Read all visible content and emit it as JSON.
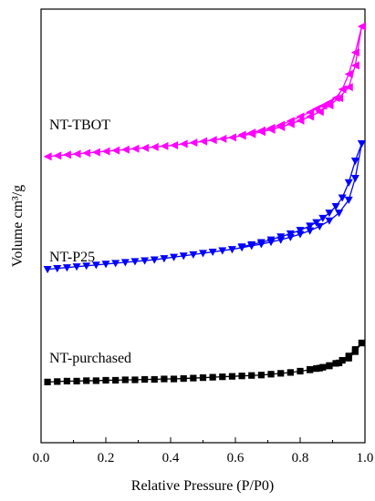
{
  "chart_data": {
    "type": "scatter",
    "xlabel": "Relative Pressure (P/P0)",
    "ylabel": "Volume cm³/g",
    "xlim": [
      0.0,
      1.0
    ],
    "x_ticks": [
      "0.0",
      "0.2",
      "0.4",
      "0.6",
      "0.8",
      "1.0"
    ],
    "y_ticks_visible": false,
    "series": [
      {
        "name": "NT-TBOT",
        "color": "#ff00ff",
        "marker": "triangle-left",
        "adsorption": [
          [
            0.02,
            0.66
          ],
          [
            0.05,
            0.662
          ],
          [
            0.08,
            0.664
          ],
          [
            0.11,
            0.666
          ],
          [
            0.14,
            0.668
          ],
          [
            0.17,
            0.67
          ],
          [
            0.2,
            0.672
          ],
          [
            0.23,
            0.674
          ],
          [
            0.26,
            0.676
          ],
          [
            0.29,
            0.678
          ],
          [
            0.32,
            0.68
          ],
          [
            0.35,
            0.682
          ],
          [
            0.38,
            0.684
          ],
          [
            0.41,
            0.686
          ],
          [
            0.44,
            0.689
          ],
          [
            0.47,
            0.692
          ],
          [
            0.5,
            0.695
          ],
          [
            0.53,
            0.698
          ],
          [
            0.56,
            0.701
          ],
          [
            0.59,
            0.704
          ],
          [
            0.62,
            0.708
          ],
          [
            0.65,
            0.712
          ],
          [
            0.68,
            0.717
          ],
          [
            0.71,
            0.722
          ],
          [
            0.74,
            0.728
          ],
          [
            0.77,
            0.735
          ],
          [
            0.8,
            0.743
          ],
          [
            0.83,
            0.752
          ],
          [
            0.86,
            0.763
          ],
          [
            0.89,
            0.778
          ],
          [
            0.92,
            0.795
          ],
          [
            0.95,
            0.82
          ],
          [
            0.97,
            0.87
          ],
          [
            0.99,
            0.96
          ]
        ],
        "desorption": [
          [
            0.99,
            0.96
          ],
          [
            0.97,
            0.9
          ],
          [
            0.95,
            0.85
          ],
          [
            0.93,
            0.815
          ],
          [
            0.91,
            0.795
          ],
          [
            0.89,
            0.785
          ],
          [
            0.87,
            0.777
          ],
          [
            0.85,
            0.77
          ],
          [
            0.83,
            0.762
          ],
          [
            0.8,
            0.752
          ],
          [
            0.77,
            0.742
          ],
          [
            0.74,
            0.733
          ],
          [
            0.71,
            0.726
          ],
          [
            0.68,
            0.72
          ],
          [
            0.65,
            0.715
          ],
          [
            0.62,
            0.71
          ]
        ]
      },
      {
        "name": "NT-P25",
        "color": "#0000ff",
        "marker": "triangle-down",
        "adsorption": [
          [
            0.02,
            0.4
          ],
          [
            0.05,
            0.402
          ],
          [
            0.08,
            0.404
          ],
          [
            0.11,
            0.406
          ],
          [
            0.14,
            0.408
          ],
          [
            0.17,
            0.41
          ],
          [
            0.2,
            0.412
          ],
          [
            0.23,
            0.414
          ],
          [
            0.26,
            0.416
          ],
          [
            0.29,
            0.418
          ],
          [
            0.32,
            0.42
          ],
          [
            0.35,
            0.422
          ],
          [
            0.38,
            0.425
          ],
          [
            0.41,
            0.428
          ],
          [
            0.44,
            0.431
          ],
          [
            0.47,
            0.434
          ],
          [
            0.5,
            0.437
          ],
          [
            0.53,
            0.44
          ],
          [
            0.56,
            0.443
          ],
          [
            0.59,
            0.446
          ],
          [
            0.62,
            0.45
          ],
          [
            0.65,
            0.454
          ],
          [
            0.68,
            0.458
          ],
          [
            0.71,
            0.463
          ],
          [
            0.74,
            0.468
          ],
          [
            0.77,
            0.474
          ],
          [
            0.8,
            0.481
          ],
          [
            0.83,
            0.489
          ],
          [
            0.86,
            0.499
          ],
          [
            0.89,
            0.512
          ],
          [
            0.92,
            0.53
          ],
          [
            0.95,
            0.56
          ],
          [
            0.97,
            0.61
          ],
          [
            0.99,
            0.69
          ]
        ],
        "desorption": [
          [
            0.99,
            0.69
          ],
          [
            0.97,
            0.65
          ],
          [
            0.95,
            0.6
          ],
          [
            0.93,
            0.565
          ],
          [
            0.91,
            0.545
          ],
          [
            0.89,
            0.53
          ],
          [
            0.87,
            0.518
          ],
          [
            0.85,
            0.508
          ],
          [
            0.83,
            0.5
          ],
          [
            0.8,
            0.49
          ],
          [
            0.77,
            0.482
          ],
          [
            0.74,
            0.475
          ],
          [
            0.71,
            0.468
          ],
          [
            0.68,
            0.462
          ],
          [
            0.65,
            0.457
          ],
          [
            0.62,
            0.452
          ]
        ]
      },
      {
        "name": "NT-purchased",
        "color": "#000000",
        "marker": "square",
        "adsorption": [
          [
            0.02,
            0.14
          ],
          [
            0.05,
            0.141
          ],
          [
            0.08,
            0.142
          ],
          [
            0.11,
            0.142
          ],
          [
            0.14,
            0.143
          ],
          [
            0.17,
            0.143
          ],
          [
            0.2,
            0.144
          ],
          [
            0.23,
            0.144
          ],
          [
            0.26,
            0.145
          ],
          [
            0.29,
            0.145
          ],
          [
            0.32,
            0.146
          ],
          [
            0.35,
            0.146
          ],
          [
            0.38,
            0.147
          ],
          [
            0.41,
            0.147
          ],
          [
            0.44,
            0.148
          ],
          [
            0.47,
            0.149
          ],
          [
            0.5,
            0.15
          ],
          [
            0.53,
            0.151
          ],
          [
            0.56,
            0.152
          ],
          [
            0.59,
            0.153
          ],
          [
            0.62,
            0.154
          ],
          [
            0.65,
            0.155
          ],
          [
            0.68,
            0.156
          ],
          [
            0.71,
            0.158
          ],
          [
            0.74,
            0.16
          ],
          [
            0.77,
            0.162
          ],
          [
            0.8,
            0.165
          ],
          [
            0.83,
            0.168
          ],
          [
            0.86,
            0.172
          ],
          [
            0.89,
            0.177
          ],
          [
            0.92,
            0.184
          ],
          [
            0.95,
            0.195
          ],
          [
            0.97,
            0.21
          ],
          [
            0.99,
            0.23
          ]
        ],
        "desorption": [
          [
            0.99,
            0.23
          ],
          [
            0.97,
            0.215
          ],
          [
            0.95,
            0.2
          ],
          [
            0.93,
            0.19
          ],
          [
            0.91,
            0.183
          ],
          [
            0.89,
            0.178
          ],
          [
            0.87,
            0.174
          ],
          [
            0.85,
            0.171
          ],
          [
            0.83,
            0.169
          ]
        ]
      }
    ]
  }
}
